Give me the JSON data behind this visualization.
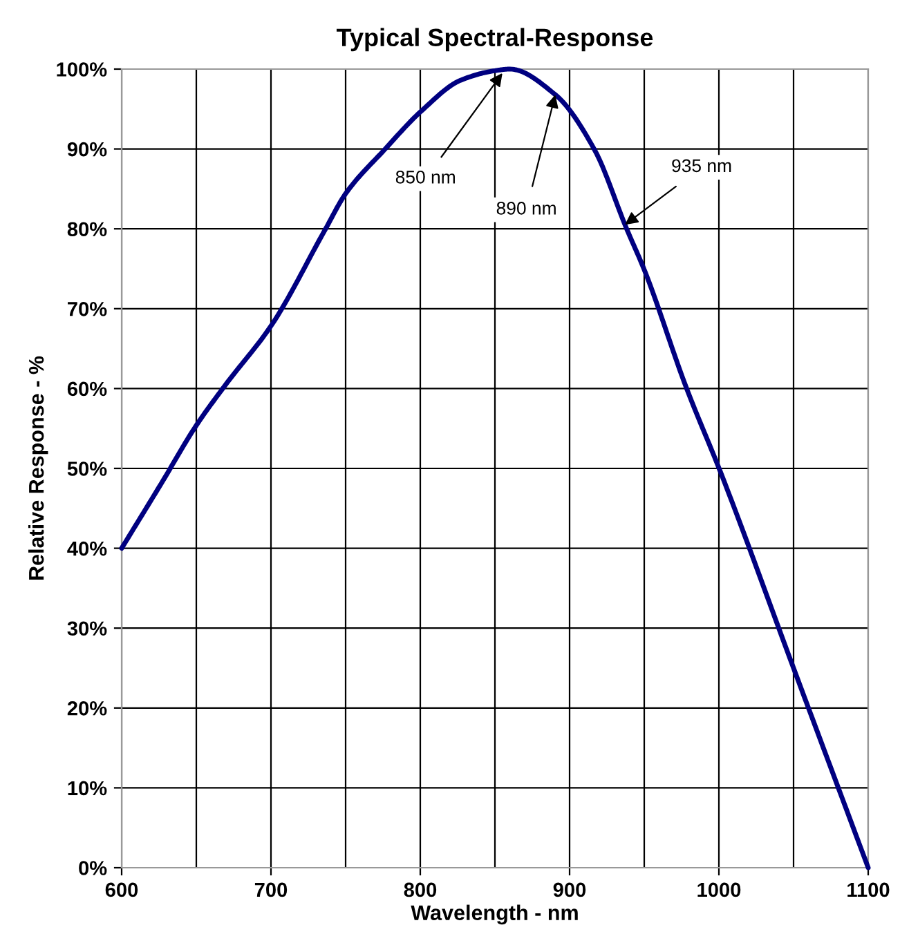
{
  "chart_data": {
    "type": "line",
    "title": "Typical Spectral-Response",
    "xlabel": "Wavelength - nm",
    "ylabel": "Relative Response - %",
    "x": [
      600,
      626.5,
      649.7,
      669.7,
      700.6,
      736,
      750,
      776,
      801,
      827,
      850,
      860,
      890.4,
      916.7,
      938,
      950.6,
      978,
      1001.6,
      1050,
      1100
    ],
    "series": [
      {
        "color": "#000080",
        "values": [
          40,
          48.1,
          55.3,
          60.5,
          68,
          79.8,
          84.4,
          89.9,
          94.8,
          98.6,
          99.8,
          100,
          96.8,
          89.9,
          80.1,
          74.6,
          60.2,
          49.3,
          25,
          0
        ]
      }
    ],
    "xlim": [
      600,
      1100
    ],
    "xticks": [
      600,
      700,
      800,
      900,
      1000,
      1100
    ],
    "ylim": [
      0,
      100
    ],
    "yticks": [
      {
        "value": 0,
        "label": "0%"
      },
      {
        "value": 10,
        "label": "10%"
      },
      {
        "value": 20,
        "label": "20%"
      },
      {
        "value": 30,
        "label": "30%"
      },
      {
        "value": 40,
        "label": "40%"
      },
      {
        "value": 50,
        "label": "50%"
      },
      {
        "value": 60,
        "label": "60%"
      },
      {
        "value": 70,
        "label": "70%"
      },
      {
        "value": 80,
        "label": "80%"
      },
      {
        "value": 90,
        "label": "90%"
      },
      {
        "value": 100,
        "label": "100%"
      }
    ],
    "grid": true,
    "marker": "none",
    "line_style": "solid",
    "annotations": [
      {
        "text": "850 nm",
        "x": 855,
        "y": 99.5
      },
      {
        "text": "890 nm",
        "x": 890.4,
        "y": 96.8
      },
      {
        "text": "935 nm",
        "x": 937,
        "y": 80.5
      }
    ]
  }
}
